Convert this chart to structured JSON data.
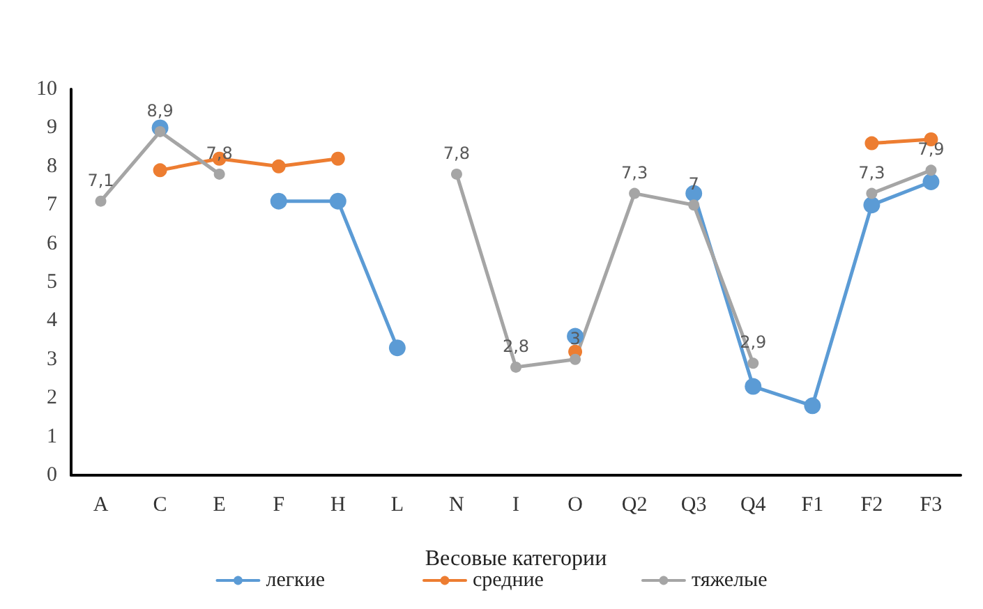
{
  "chart_data": {
    "type": "line",
    "xlabel": "Весовые категории",
    "categories": [
      "A",
      "C",
      "E",
      "F",
      "H",
      "L",
      "N",
      "I",
      "O",
      "Q2",
      "Q3",
      "Q4",
      "F1",
      "F2",
      "F3"
    ],
    "series": [
      {
        "name": "легкие",
        "color": "#5b9bd5",
        "values": [
          null,
          9.0,
          null,
          7.1,
          7.1,
          3.3,
          null,
          null,
          3.6,
          null,
          7.3,
          2.3,
          1.8,
          7.0,
          7.6
        ]
      },
      {
        "name": "средние",
        "color": "#ed7d31",
        "values": [
          null,
          7.9,
          8.2,
          8.0,
          8.2,
          null,
          null,
          null,
          3.2,
          null,
          null,
          null,
          null,
          8.6,
          8.7
        ]
      },
      {
        "name": "тяжелые",
        "color": "#a5a5a5",
        "values": [
          7.1,
          8.9,
          7.8,
          null,
          null,
          null,
          7.8,
          2.8,
          3.0,
          7.3,
          7.0,
          2.9,
          null,
          7.3,
          7.9
        ],
        "value_labels": [
          "7,1",
          "8,9",
          "7,8",
          null,
          null,
          null,
          "7,8",
          "2,8",
          "3",
          "7,3",
          "7",
          "2,9",
          null,
          "7,3",
          "7,9"
        ]
      }
    ],
    "ylim": [
      0,
      10
    ],
    "yticks": [
      0,
      1,
      2,
      3,
      4,
      5,
      6,
      7,
      8,
      9,
      10
    ],
    "grid": false,
    "legend": "bottom",
    "marker": "circle",
    "line_style": "solid"
  }
}
